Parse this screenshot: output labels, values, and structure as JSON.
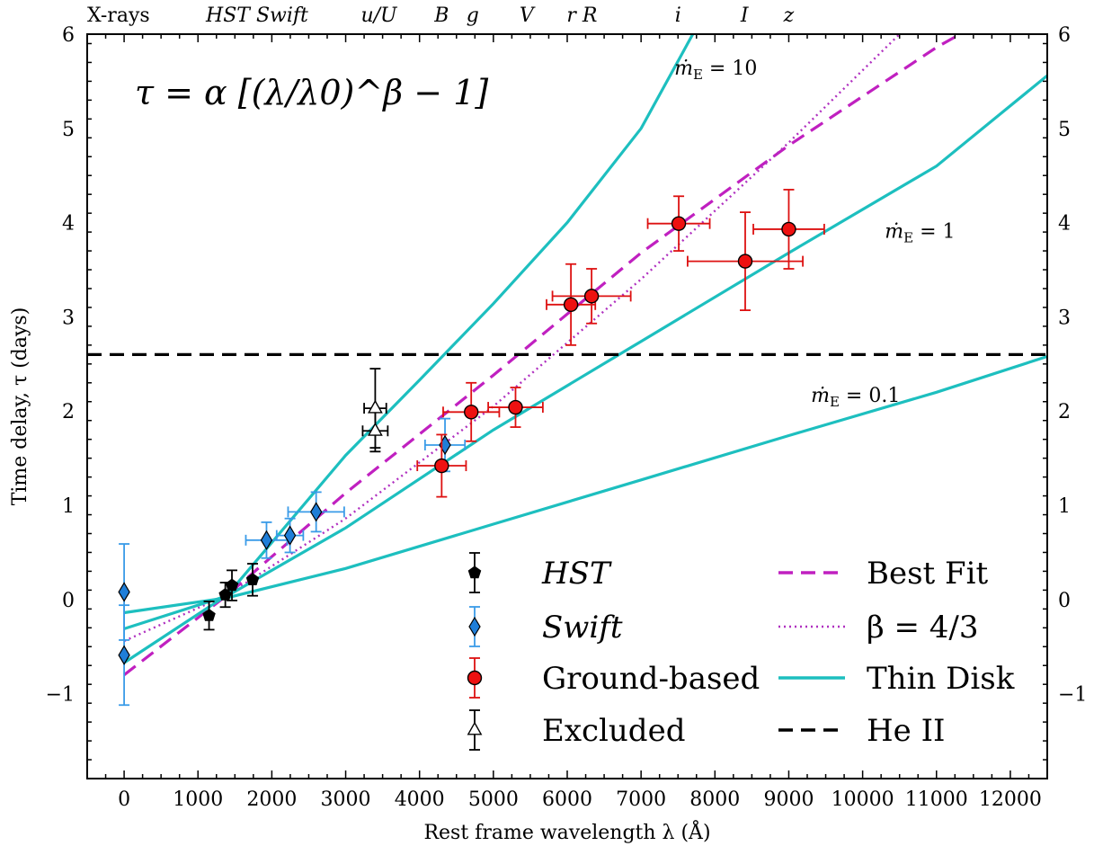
{
  "chart_data": {
    "type": "scatter",
    "xlabel": "Rest frame wavelength λ (Å)",
    "ylabel": "Time delay, τ (days)",
    "xlim": [
      -500,
      12500
    ],
    "ylim": [
      -1.9,
      6
    ],
    "x_ticks": [
      0,
      1000,
      2000,
      3000,
      4000,
      5000,
      6000,
      7000,
      8000,
      9000,
      10000,
      11000,
      12000
    ],
    "y_ticks": [
      -1,
      0,
      1,
      2,
      3,
      4,
      5,
      6
    ],
    "y_tick_labels": [
      "−1",
      "0",
      "1",
      "2",
      "3",
      "4",
      "5",
      "6"
    ],
    "y_tick_labels_right": [
      "−1",
      "0",
      "1",
      "2",
      "3",
      "4",
      "5",
      "6"
    ],
    "formula": "τ = α [(λ/λ0)^β − 1]",
    "band_labels": [
      {
        "text": "X-rays",
        "x": -500,
        "italic": false
      },
      {
        "text": "HST Swift",
        "x": 1800,
        "italic": true
      },
      {
        "text": "u/U",
        "x": 3450,
        "italic": true
      },
      {
        "text": "B",
        "x": 4300,
        "italic": true
      },
      {
        "text": "g",
        "x": 4720,
        "italic": true
      },
      {
        "text": "V",
        "x": 5450,
        "italic": true
      },
      {
        "text": "r R",
        "x": 6200,
        "italic": true
      },
      {
        "text": "i",
        "x": 7500,
        "italic": true
      },
      {
        "text": "I",
        "x": 8400,
        "italic": true
      },
      {
        "text": "z",
        "x": 9000,
        "italic": true
      }
    ],
    "series": [
      {
        "name": "HST",
        "marker": "pentagon",
        "color": "#000000",
        "ecolor": "#000000",
        "points": [
          {
            "x": 1150,
            "y": -0.17,
            "xerr": 0,
            "yerr": 0.15
          },
          {
            "x": 1370,
            "y": 0.05,
            "xerr": 0,
            "yerr": 0.13
          },
          {
            "x": 1460,
            "y": 0.15,
            "xerr": 0,
            "yerr": 0.16
          },
          {
            "x": 1740,
            "y": 0.21,
            "xerr": 0,
            "yerr": 0.17
          }
        ]
      },
      {
        "name": "Swift",
        "marker": "diamond",
        "color": "#1f7ed8",
        "ecolor": "#3a9be8",
        "points": [
          {
            "x": 0,
            "y": 0.08,
            "xerr": 0,
            "yerr": 0.51
          },
          {
            "x": 0,
            "y": -0.59,
            "xerr": 0,
            "yerr": 0.53
          },
          {
            "x": 1928,
            "y": 0.63,
            "xerr": 280,
            "yerr": 0.19
          },
          {
            "x": 2246,
            "y": 0.68,
            "xerr": 180,
            "yerr": 0.18
          },
          {
            "x": 2600,
            "y": 0.93,
            "xerr": 380,
            "yerr": 0.21
          },
          {
            "x": 4345,
            "y": 1.64,
            "xerr": 270,
            "yerr": 0.28
          }
        ]
      },
      {
        "name": "Ground-based",
        "marker": "circle",
        "color": "#ee1111",
        "ecolor": "#dd1111",
        "points": [
          {
            "x": 4300,
            "y": 1.42,
            "xerr": 330,
            "yerr": 0.33
          },
          {
            "x": 4700,
            "y": 1.99,
            "xerr": 380,
            "yerr": 0.31
          },
          {
            "x": 5300,
            "y": 2.04,
            "xerr": 370,
            "yerr": 0.21
          },
          {
            "x": 6050,
            "y": 3.13,
            "xerr": 330,
            "yerr": 0.43
          },
          {
            "x": 6330,
            "y": 3.22,
            "xerr": 530,
            "yerr": 0.29
          },
          {
            "x": 7510,
            "y": 3.99,
            "xerr": 420,
            "yerr": 0.29
          },
          {
            "x": 8410,
            "y": 3.59,
            "xerr": 780,
            "yerr": 0.52
          },
          {
            "x": 9000,
            "y": 3.93,
            "xerr": 480,
            "yerr": 0.42
          }
        ]
      },
      {
        "name": "Excluded",
        "marker": "triangle-open",
        "color": "#000000",
        "ecolor": "#000000",
        "points": [
          {
            "x": 3400,
            "y": 2.03,
            "xerr": 150,
            "yerr": 0.42
          },
          {
            "x": 3400,
            "y": 1.79,
            "xerr": 170,
            "yerr": 0.22
          }
        ]
      }
    ],
    "curves": [
      {
        "name": "Best Fit",
        "style": "dashed",
        "color": "#c020c0",
        "points": [
          [
            0,
            -0.8
          ],
          [
            1400,
            0.05
          ],
          [
            3000,
            1.13
          ],
          [
            5000,
            2.38
          ],
          [
            7000,
            3.68
          ],
          [
            9000,
            4.82
          ],
          [
            11000,
            5.86
          ],
          [
            12000,
            6.3
          ]
        ]
      },
      {
        "name": "β = 4/3",
        "style": "dotted",
        "color": "#b030c0",
        "points": [
          [
            0,
            -0.44
          ],
          [
            1400,
            0.05
          ],
          [
            3000,
            0.86
          ],
          [
            5000,
            2.05
          ],
          [
            7000,
            3.4
          ],
          [
            9000,
            4.85
          ],
          [
            10500,
            6.0
          ]
        ]
      },
      {
        "name": "Thin Disk",
        "style": "solid",
        "color": "#1dbfbf",
        "points": [
          [
            0,
            -0.67
          ],
          [
            1400,
            0.05
          ],
          [
            3000,
            1.53
          ],
          [
            4000,
            2.33
          ],
          [
            5000,
            3.14
          ],
          [
            6000,
            4.0
          ],
          [
            7000,
            5.0
          ],
          [
            7700,
            6.0
          ]
        ]
      },
      {
        "name": "",
        "style": "solid",
        "color": "#1dbfbf",
        "points": [
          [
            0,
            -0.31
          ],
          [
            1400,
            0.04
          ],
          [
            3000,
            0.76
          ],
          [
            5000,
            1.8
          ],
          [
            7000,
            2.74
          ],
          [
            9000,
            3.68
          ],
          [
            11000,
            4.6
          ],
          [
            12500,
            5.56
          ]
        ]
      },
      {
        "name": "",
        "style": "solid",
        "color": "#1dbfbf",
        "points": [
          [
            0,
            -0.14
          ],
          [
            1400,
            0.02
          ],
          [
            3000,
            0.33
          ],
          [
            5000,
            0.8
          ],
          [
            7000,
            1.27
          ],
          [
            9000,
            1.74
          ],
          [
            11000,
            2.2
          ],
          [
            12500,
            2.58
          ]
        ]
      },
      {
        "name": "He II",
        "style": "dashed",
        "color": "#000000",
        "points": [
          [
            -500,
            2.6
          ],
          [
            12500,
            2.6
          ]
        ]
      }
    ],
    "model_labels": [
      {
        "prefix": "ṁ",
        "sub": "E",
        "suffix": " = 10",
        "x": 7450,
        "y": 5.57
      },
      {
        "prefix": "ṁ",
        "sub": "E",
        "suffix": " = 1",
        "x": 10300,
        "y": 3.84
      },
      {
        "prefix": "ṁ",
        "sub": "E",
        "suffix": " = 0.1",
        "x": 9300,
        "y": 2.1
      }
    ],
    "legend": {
      "placement": "lower-right",
      "columns": [
        [
          {
            "label": "HST",
            "series": "HST"
          },
          {
            "label": "Swift",
            "series": "Swift"
          },
          {
            "label": "Ground-based",
            "series": "Ground-based"
          },
          {
            "label": "Excluded",
            "series": "Excluded"
          }
        ],
        [
          {
            "label": "Best Fit",
            "curve": "Best Fit"
          },
          {
            "label": "β = 4/3",
            "curve": "β = 4/3"
          },
          {
            "label": "Thin Disk",
            "curve": "Thin Disk"
          },
          {
            "label": "He II",
            "curve": "He II"
          }
        ]
      ]
    }
  }
}
